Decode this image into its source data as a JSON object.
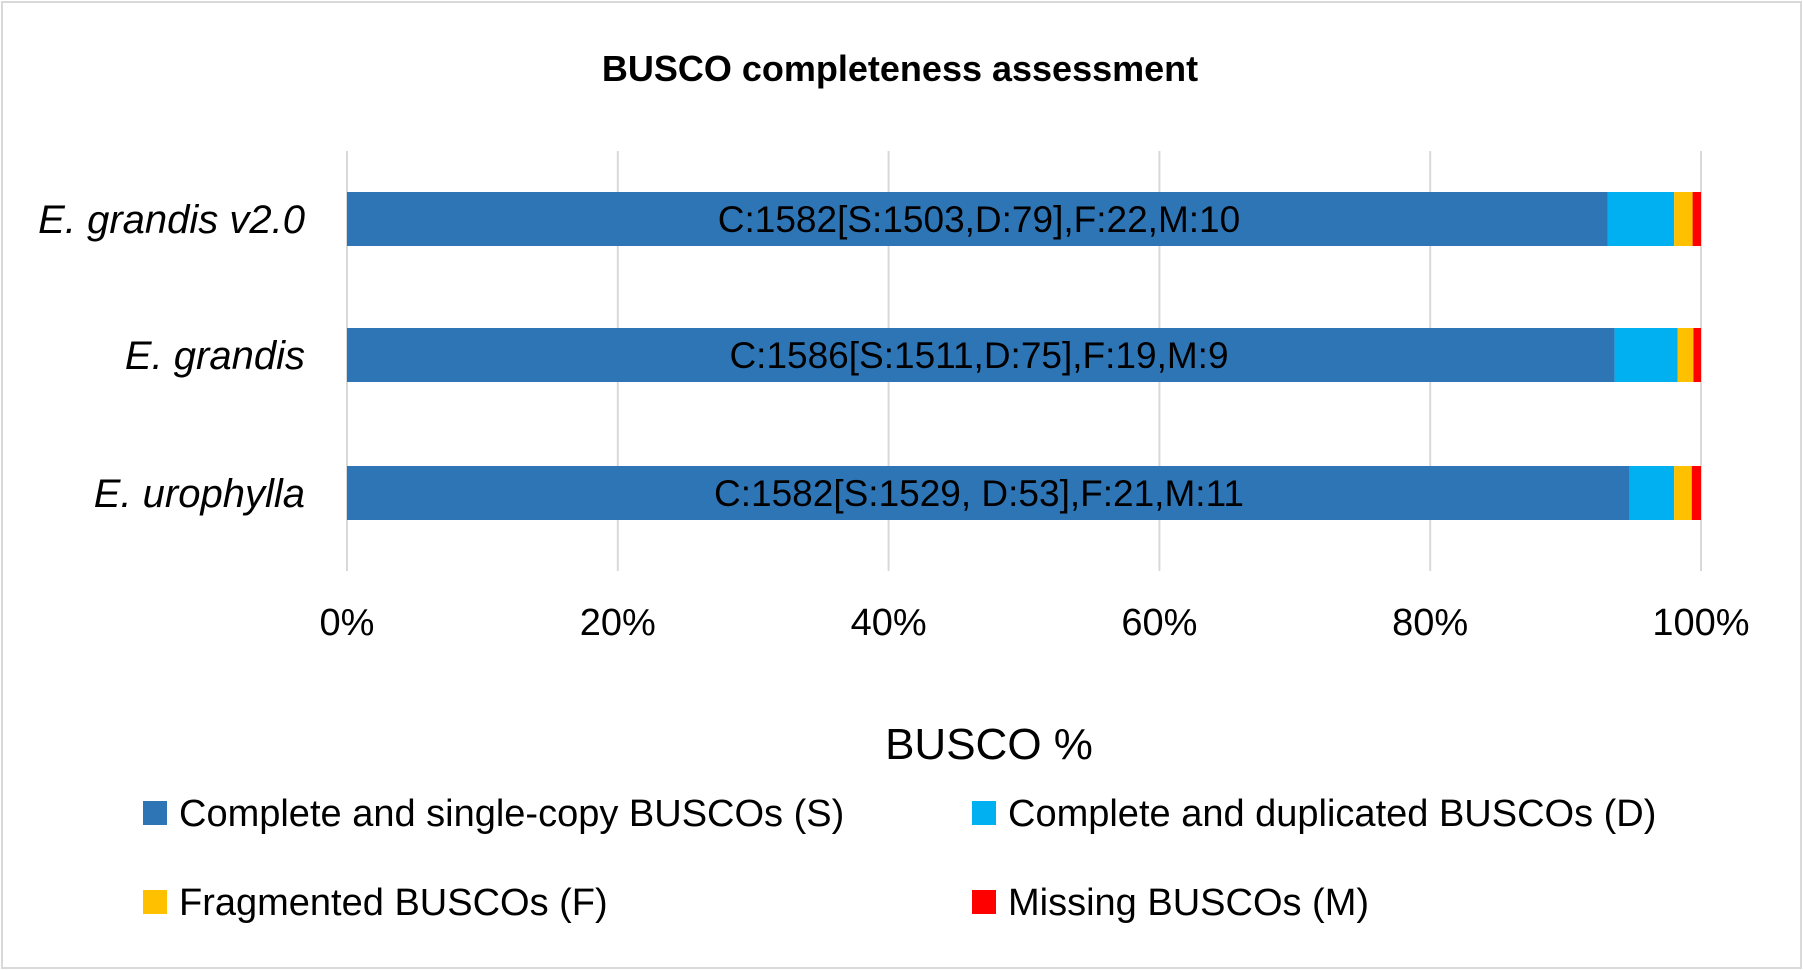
{
  "chart_data": {
    "type": "bar",
    "orientation": "horizontal",
    "stacked": "percent",
    "title": "BUSCO completeness assessment",
    "xlabel": "BUSCO %",
    "ylabel": "",
    "xlim": [
      0,
      100
    ],
    "x_ticks": [
      "0%",
      "20%",
      "40%",
      "60%",
      "80%",
      "100%"
    ],
    "grid": "vertical",
    "legend_position": "bottom",
    "categories": [
      "E. grandis v2.0",
      "E. grandis",
      "E. urophylla"
    ],
    "series": [
      {
        "name": "Complete and single-copy BUSCOs (S)",
        "color": "#2e75b6",
        "values": [
          1503,
          1511,
          1529
        ]
      },
      {
        "name": "Complete and duplicated BUSCOs (D)",
        "color": "#00b0f0",
        "values": [
          79,
          75,
          53
        ]
      },
      {
        "name": "Fragmented BUSCOs (F)",
        "color": "#ffc000",
        "values": [
          22,
          19,
          21
        ]
      },
      {
        "name": "Missing BUSCOs (M)",
        "color": "#ff0000",
        "values": [
          10,
          9,
          11
        ]
      }
    ],
    "data_labels": [
      "C:1582[S:1503,D:79],F:22,M:10",
      "C:1586[S:1511,D:75],F:19,M:9",
      "C:1582[S:1529, D:53],F:21,M:11"
    ],
    "gridline_color": "#d9d9d9"
  }
}
